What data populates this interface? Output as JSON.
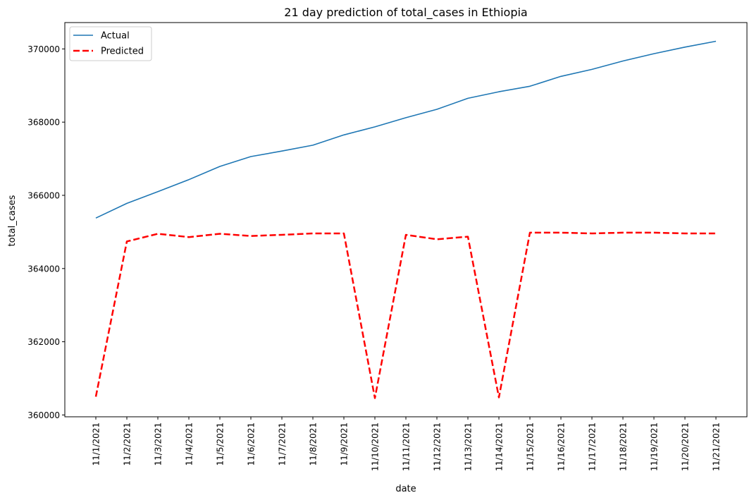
{
  "chart_data": {
    "type": "line",
    "title": "21 day prediction of total_cases in Ethiopia",
    "xlabel": "date",
    "ylabel": "total_cases",
    "categories": [
      "11/1/2021",
      "11/2/2021",
      "11/3/2021",
      "11/4/2021",
      "11/5/2021",
      "11/6/2021",
      "11/7/2021",
      "11/8/2021",
      "11/9/2021",
      "11/10/2021",
      "11/11/2021",
      "11/12/2021",
      "11/13/2021",
      "11/14/2021",
      "11/15/2021",
      "11/16/2021",
      "11/17/2021",
      "11/18/2021",
      "11/19/2021",
      "11/20/2021",
      "11/21/2021"
    ],
    "yticks": [
      360000,
      362000,
      364000,
      366000,
      368000,
      370000
    ],
    "ytick_labels": [
      "360000",
      "362000",
      "364000",
      "366000",
      "368000",
      "370000"
    ],
    "ylim": [
      359950,
      370720
    ],
    "grid": false,
    "legend_position": "top-left",
    "series": [
      {
        "name": "Actual",
        "color": "#1f77b4",
        "style": "solid",
        "values": [
          365380,
          365780,
          366100,
          366430,
          366790,
          367060,
          367210,
          367370,
          367650,
          367870,
          368120,
          368350,
          368650,
          368830,
          368980,
          369250,
          369440,
          369670,
          369870,
          370050,
          370210
        ]
      },
      {
        "name": "Predicted",
        "color": "#ff0000",
        "style": "dashed",
        "values": [
          360500,
          364740,
          364950,
          364860,
          364950,
          364890,
          364920,
          364960,
          364960,
          360460,
          364920,
          364800,
          364870,
          360480,
          364980,
          364980,
          364960,
          364980,
          364980,
          364960,
          364960
        ]
      }
    ]
  }
}
